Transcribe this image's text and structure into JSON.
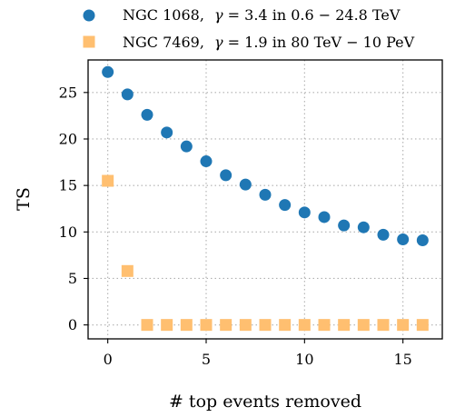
{
  "chart_data": {
    "type": "scatter",
    "title": "",
    "xlabel": "# top events removed",
    "ylabel": "TS",
    "xlim": [
      -1,
      17
    ],
    "ylim": [
      -1.5,
      28.5
    ],
    "xticks": [
      0,
      5,
      10,
      15
    ],
    "yticks": [
      0,
      5,
      10,
      15,
      20,
      25
    ],
    "grid": true,
    "legend_position": "top",
    "series": [
      {
        "legend_label": {
          "name": "NGC 1068,",
          "gamma_symbol": "γ",
          "rest": " = 3.4 in 0.6 − 24.8 TeV"
        },
        "marker": "circle",
        "color": "#1f77b4",
        "x": [
          0,
          1,
          2,
          3,
          4,
          5,
          6,
          7,
          8,
          9,
          10,
          11,
          12,
          13,
          14,
          15,
          16
        ],
        "y": [
          27.2,
          24.8,
          22.6,
          20.7,
          19.2,
          17.6,
          16.1,
          15.1,
          14.0,
          12.9,
          12.1,
          11.6,
          10.7,
          10.5,
          9.7,
          9.2,
          9.1
        ]
      },
      {
        "legend_label": {
          "name": "NGC 7469,",
          "gamma_symbol": "γ",
          "rest": " = 1.9 in 80 TeV − 10 PeV"
        },
        "marker": "square",
        "color": "#ffbf70",
        "x": [
          0,
          1,
          2,
          3,
          4,
          5,
          6,
          7,
          8,
          9,
          10,
          11,
          12,
          13,
          14,
          15,
          16
        ],
        "y": [
          15.5,
          5.8,
          0,
          0,
          0,
          0,
          0,
          0,
          0,
          0,
          0,
          0,
          0,
          0,
          0,
          0,
          0
        ]
      }
    ]
  }
}
